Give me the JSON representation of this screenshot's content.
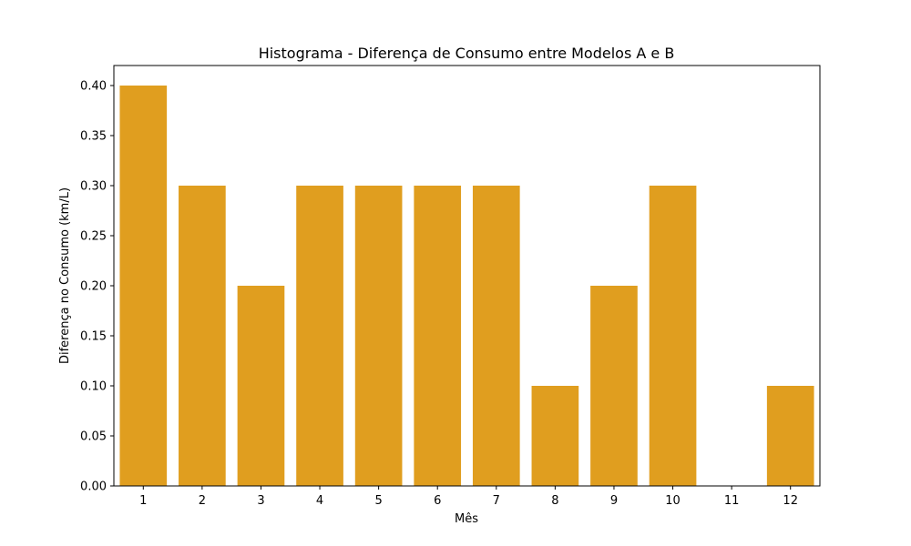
{
  "chart_data": {
    "type": "bar",
    "title": "Histograma - Diferença de Consumo entre Modelos A e B",
    "xlabel": "Mês",
    "ylabel": "Diferença no Consumo (km/L)",
    "categories": [
      "1",
      "2",
      "3",
      "4",
      "5",
      "6",
      "7",
      "8",
      "9",
      "10",
      "11",
      "12"
    ],
    "values": [
      0.4,
      0.3,
      0.2,
      0.3,
      0.3,
      0.3,
      0.3,
      0.1,
      0.2,
      0.3,
      0.0,
      0.1
    ],
    "ylim": [
      0,
      0.42
    ],
    "yticks": [
      "0.00",
      "0.05",
      "0.10",
      "0.15",
      "0.20",
      "0.25",
      "0.30",
      "0.35",
      "0.40"
    ],
    "grid": false,
    "bar_color": "#E09E1F"
  }
}
